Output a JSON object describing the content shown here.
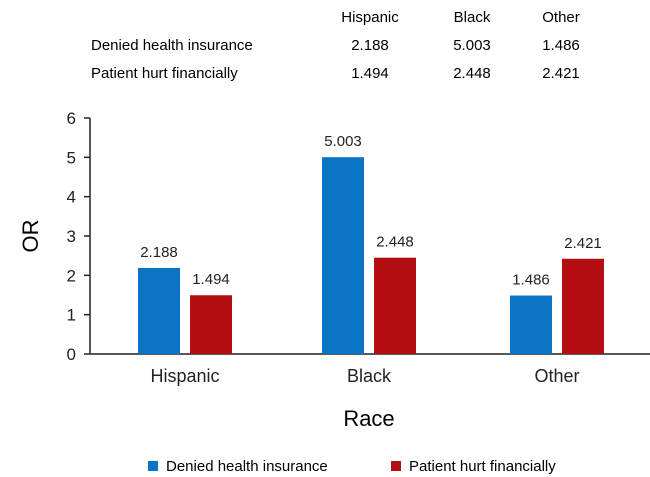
{
  "chart_data": {
    "type": "bar",
    "title": "",
    "xlabel": "Race",
    "ylabel": "OR",
    "categories": [
      "Hispanic",
      "Black",
      "Other"
    ],
    "series": [
      {
        "name": "Denied health insurance",
        "color": "#0a73c4",
        "values": [
          2.188,
          5.003,
          1.486
        ],
        "labels": [
          "2.188",
          "5.003",
          "1.486"
        ]
      },
      {
        "name": "Patient hurt financially",
        "color": "#b30f13",
        "values": [
          1.494,
          2.448,
          2.421
        ],
        "labels": [
          "1.494",
          "2.448",
          "2.421"
        ]
      }
    ],
    "ylim": [
      0,
      6
    ],
    "yticks": [
      "0",
      "1",
      "2",
      "3",
      "4",
      "5",
      "6"
    ],
    "grid": false,
    "legend_position": "bottom-center",
    "table": {
      "columns": [
        "Hispanic",
        "Black",
        "Other"
      ],
      "rows": [
        {
          "label": "Denied health insurance",
          "values": [
            "2.188",
            "5.003",
            "1.486"
          ]
        },
        {
          "label": "Patient hurt financially",
          "values": [
            "1.494",
            "2.448",
            "2.421"
          ]
        }
      ]
    }
  }
}
